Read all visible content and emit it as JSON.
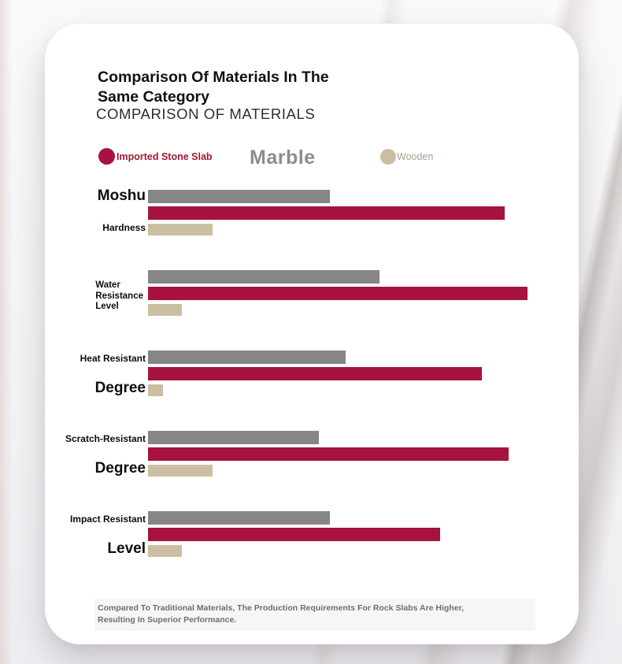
{
  "header": {
    "title_line1": "Comparison Of Materials In The",
    "title_line2": "Same Category",
    "subtitle": "COMPARISON OF MATERIALS"
  },
  "legend": {
    "stone": {
      "label": "Imported Stone Slab",
      "color": "#a8123e"
    },
    "marble": {
      "label": "Marble",
      "color": "#8c8c8c"
    },
    "wooden": {
      "label": "Wooden",
      "color": "#cbbfa3"
    }
  },
  "chart_data": {
    "type": "bar",
    "orientation": "horizontal",
    "title": "Comparison Of Materials In The Same Category",
    "subtitle": "COMPARISON OF MATERIALS",
    "legend_position": "top",
    "axis_ticks_shown": false,
    "grid": false,
    "xlim": [
      0,
      100
    ],
    "value_note": "percent of longest bar (Imported Stone Slab water resistance = 100)",
    "categories": [
      "Moshu Hardness",
      "Water Resistance Level",
      "Heat Resistant Degree",
      "Scratch-Resistant Degree",
      "Impact Resistant Level"
    ],
    "series": [
      {
        "name": "Marble",
        "color": "#868686",
        "values": [
          48,
          61,
          52,
          45,
          48
        ]
      },
      {
        "name": "Imported Stone Slab",
        "color": "#a8123e",
        "values": [
          94,
          100,
          88,
          95,
          77
        ]
      },
      {
        "name": "Wooden",
        "color": "#cbbfa3",
        "values": [
          17,
          9,
          4,
          17,
          9
        ]
      }
    ],
    "groups": [
      {
        "labels": [
          {
            "text": "Moshu",
            "size": "big",
            "row": "top"
          },
          {
            "text": "Hardness",
            "size": "small",
            "row": "bottom"
          }
        ],
        "bars": [
          48,
          94,
          17
        ]
      },
      {
        "labels": [
          {
            "text": "Water\nResistance\nLevel",
            "size": "small",
            "row": "middle"
          }
        ],
        "bars": [
          61,
          100,
          9
        ]
      },
      {
        "labels": [
          {
            "text": "Heat Resistant",
            "size": "small",
            "row": "top"
          },
          {
            "text": "Degree",
            "size": "big",
            "row": "bottom"
          }
        ],
        "bars": [
          52,
          88,
          4
        ]
      },
      {
        "labels": [
          {
            "text": "Scratch-Resistant",
            "size": "small",
            "row": "top"
          },
          {
            "text": "Degree",
            "size": "big",
            "row": "bottom"
          }
        ],
        "bars": [
          45,
          95,
          17
        ]
      },
      {
        "labels": [
          {
            "text": "Impact Resistant",
            "size": "small",
            "row": "top"
          },
          {
            "text": "Level",
            "size": "big",
            "row": "bottom"
          }
        ],
        "bars": [
          48,
          77,
          9
        ]
      }
    ]
  },
  "footer": {
    "line1": "Compared To Traditional Materials, The Production Requirements For Rock Slabs Are Higher,",
    "line2": "Resulting In Superior Performance."
  }
}
